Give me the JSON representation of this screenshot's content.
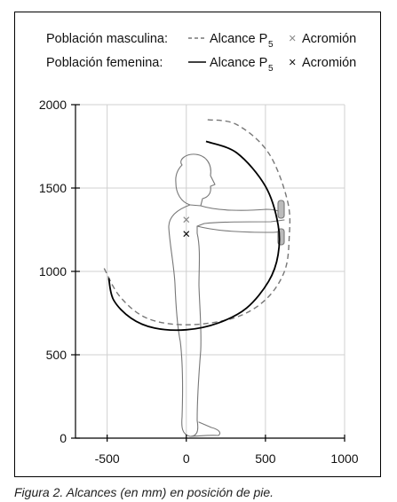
{
  "chart_data": {
    "type": "line",
    "xlim": [
      -700,
      1000
    ],
    "ylim": [
      0,
      2000
    ],
    "x_ticks": [
      "-500",
      "0",
      "500",
      "1000"
    ],
    "y_ticks": [
      "0",
      "500",
      "1000",
      "1500",
      "2000"
    ],
    "grid": true,
    "legend": {
      "position": "top",
      "rows": [
        {
          "group": "Población masculina:",
          "line_style": "dashed",
          "reach_label": "Alcance P",
          "reach_sub": "5",
          "marker_symbol": "×",
          "marker_label": "Acromión"
        },
        {
          "group": "Población femenina:",
          "line_style": "solid",
          "reach_label": "Alcance P",
          "reach_sub": "5",
          "marker_symbol": "×",
          "marker_label": "Acromión"
        }
      ]
    },
    "series": [
      {
        "name": "Población masculina",
        "style": "dashed",
        "color": "#777777",
        "acromion": [
          0,
          1310
        ],
        "x": [
          135,
          320,
          520,
          640,
          650,
          620,
          500,
          300,
          0,
          -250,
          -420,
          -520
        ],
        "y": [
          1910,
          1880,
          1710,
          1420,
          1200,
          1000,
          830,
          720,
          680,
          720,
          850,
          1020
        ]
      },
      {
        "name": "Población femenina",
        "style": "solid",
        "color": "#000000",
        "acromion": [
          0,
          1225
        ],
        "x": [
          125,
          320,
          500,
          580,
          580,
          520,
          380,
          200,
          0,
          -200,
          -350,
          -460,
          -490
        ],
        "y": [
          1780,
          1710,
          1510,
          1280,
          1100,
          940,
          780,
          690,
          650,
          660,
          720,
          830,
          960
        ]
      }
    ],
    "colors": {
      "masculina": "#777777",
      "femenina": "#000000",
      "grid": "#d0d0d0",
      "figure": "#777777"
    }
  },
  "caption": "Figura 2. Alcances (en mm) en posición de pie."
}
